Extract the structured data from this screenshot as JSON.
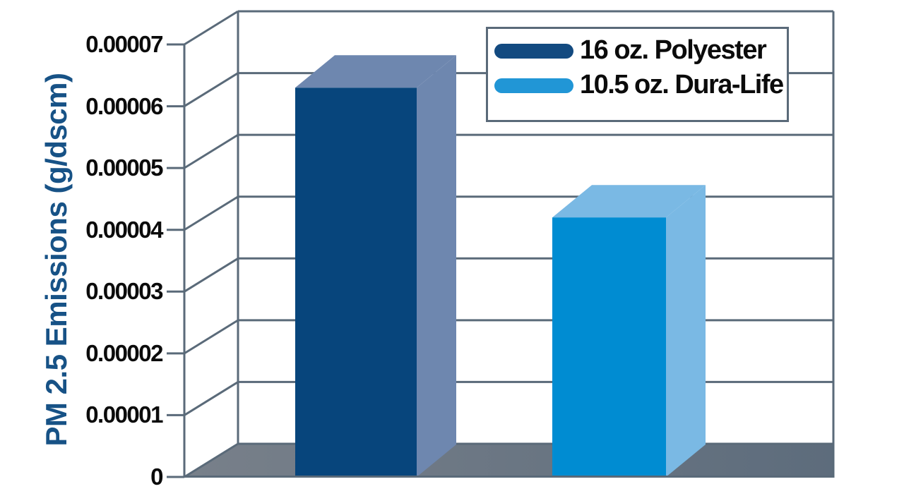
{
  "chart_data": {
    "type": "bar",
    "style": "3d-column",
    "title": "",
    "xlabel": "",
    "ylabel": "PM 2.5 Emissions (g/dscm)",
    "categories": [
      "16 oz. Polyester",
      "10.5 oz. Dura-Life"
    ],
    "values": [
      6.3e-05,
      4.2e-05
    ],
    "series": [
      {
        "name": "16 oz. Polyester",
        "value": 6.3e-05,
        "color_front": "#07457c",
        "color_shade": "#6e87af",
        "legend_color": "#134a80"
      },
      {
        "name": "10.5 oz. Dura-Life",
        "value": 4.2e-05,
        "color_front": "#008cd2",
        "color_shade": "#7ab9e4",
        "legend_color": "#2196d6"
      }
    ],
    "ylim": [
      0,
      7e-05
    ],
    "ytick_step": 1e-05,
    "yticks": [
      "0",
      "0.00001",
      "0.00002",
      "0.00003",
      "0.00004",
      "0.00005",
      "0.00006",
      "0.00007"
    ],
    "grid": true,
    "legend_position": "top-right",
    "colors": {
      "grid": "#5a6a79",
      "axis_title": "#175286",
      "tick_text": "#0b0b0b",
      "wall_fill": "#ffffff",
      "floor_left": "#78808a",
      "floor_right": "#5d6c7c",
      "legend_border": "#5a6a79",
      "background": "#ffffff"
    }
  }
}
